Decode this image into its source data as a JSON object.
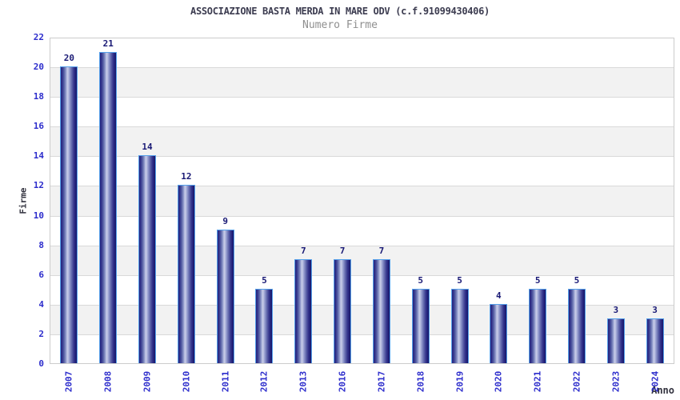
{
  "chart_data": {
    "type": "bar",
    "title": "ASSOCIAZIONE BASTA MERDA IN MARE ODV (c.f.91099430406)",
    "subtitle": "Numero Firme",
    "xlabel": "Anno",
    "ylabel": "Firme",
    "categories": [
      "2007",
      "2008",
      "2009",
      "2010",
      "2011",
      "2012",
      "2013",
      "2016",
      "2017",
      "2018",
      "2019",
      "2020",
      "2021",
      "2022",
      "2023",
      "2024"
    ],
    "values": [
      20,
      21,
      14,
      12,
      9,
      5,
      7,
      7,
      7,
      5,
      5,
      4,
      5,
      5,
      3,
      3
    ],
    "ylim": [
      0,
      22
    ],
    "ytick_step": 2,
    "grid": true,
    "legend": false,
    "colors": {
      "title": "#3c3c50",
      "subtitle": "#8f8f8f",
      "axis_title": "#32323e",
      "tick_label": "#2d2dcc",
      "value_label": "#191975",
      "bar_outline": "#55a0ea",
      "bar_dark": "#1e1e78",
      "bar_light": "#c9cde8",
      "band": "#f2f2f2",
      "gridline": "#d9d9d9",
      "plot_border": "#cccccc"
    }
  }
}
